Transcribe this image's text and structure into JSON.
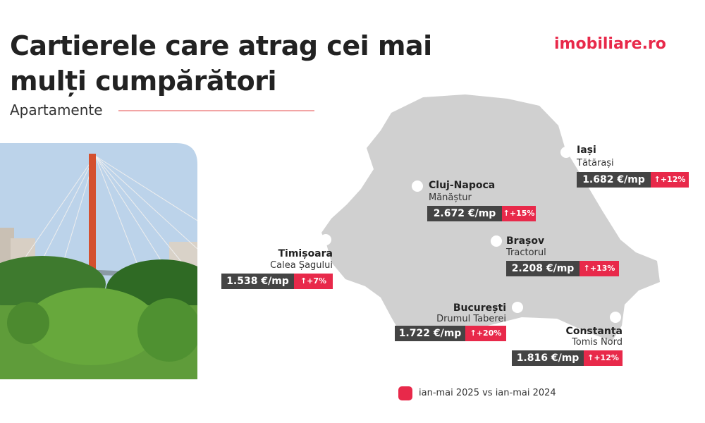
{
  "header": {
    "title_lines": [
      "Cartierele care atrag cei mai",
      "mulți cumpărători"
    ],
    "subtitle": "Apartamente",
    "logo": "imobiliare.ro"
  },
  "cities": [
    {
      "name": "Iași",
      "district": "Tătărași",
      "price": "1.682 €/mp",
      "change": "↑+12%"
    },
    {
      "name": "Cluj-Napoca",
      "district": "Mănăștur",
      "price": "2.672 €/mp",
      "change": "↑+15%"
    },
    {
      "name": "Brașov",
      "district": "Tractorul",
      "price": "2.208 €/mp",
      "change": "↑+13%"
    },
    {
      "name": "Timișoara",
      "district": "Calea Șagului",
      "price": "1.538 €/mp",
      "change": "↑+7%"
    },
    {
      "name": "București",
      "district": "Drumul Taberei",
      "price": "1.722 €/mp",
      "change": "↑+20%"
    },
    {
      "name": "Constanța",
      "district": "Tomis Nord",
      "price": "1.816 €/mp",
      "change": "↑+12%"
    }
  ],
  "legend": {
    "text": "ian-mai 2025 vs ian-mai 2024"
  }
}
